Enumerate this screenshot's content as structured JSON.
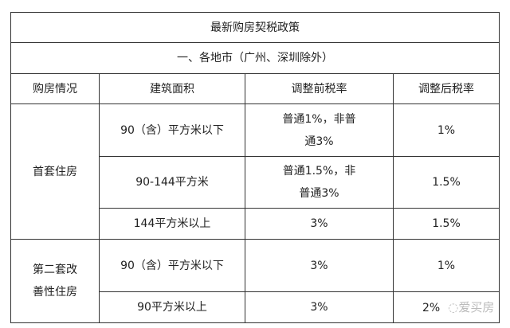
{
  "title": "最新购房契税政策",
  "section": "一、各地市（广州、深圳除外）",
  "headers": [
    "购房情况",
    "建筑面积",
    "调整前税率",
    "调整后税率"
  ],
  "groups": [
    {
      "label": "首套住房",
      "rows": [
        {
          "area": "90（含）平方米以下",
          "before": "普通1%，非普通3%",
          "after": "1%"
        },
        {
          "area": "90-144平方米",
          "before": "普通1.5%，非普通3%",
          "after": "1.5%"
        },
        {
          "area": "144平方米以上",
          "before": "3%",
          "after": "1.5%"
        }
      ]
    },
    {
      "label": "第二套改善性住房",
      "rows": [
        {
          "area": "90（含）平方米以下",
          "before": "3%",
          "after": "1%"
        },
        {
          "area": "90平方米以上",
          "before": "3%",
          "after": "2%"
        }
      ]
    }
  ],
  "watermark": "爱买房"
}
